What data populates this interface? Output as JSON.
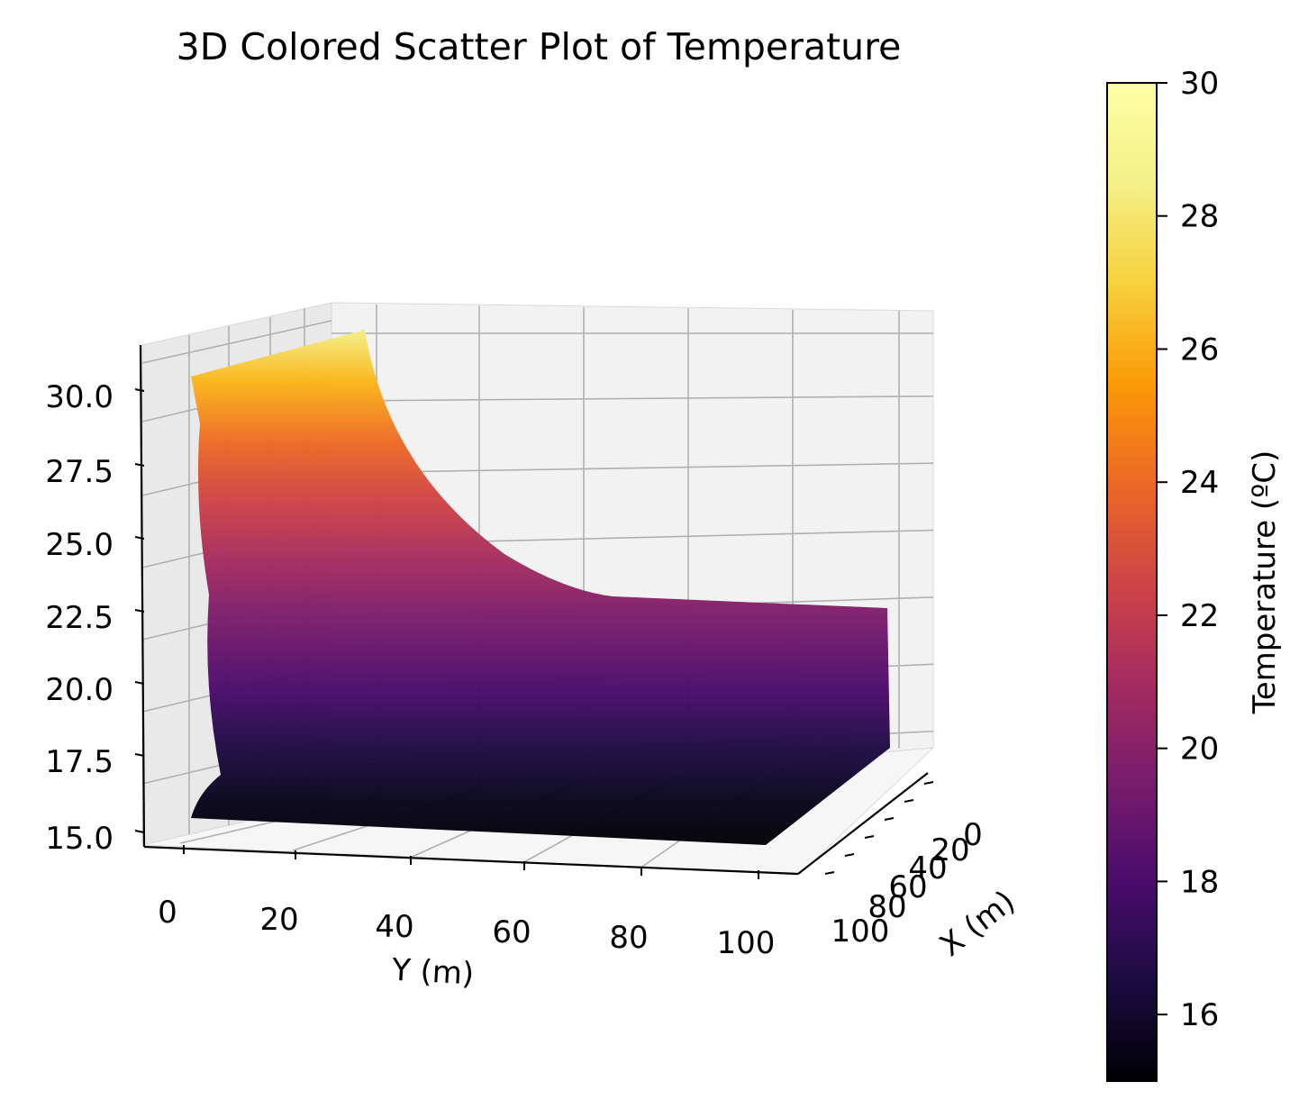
{
  "chart_data": {
    "type": "scatter",
    "projection": "3d",
    "title": "3D Colored Scatter Plot of Temperature",
    "xlabel": "X (m)",
    "ylabel": "Y (m)",
    "zlabel": "",
    "xlim": [
      0,
      100
    ],
    "ylim": [
      0,
      100
    ],
    "zlim": [
      15,
      30
    ],
    "x_ticks": [
      "0",
      "20",
      "40",
      "60",
      "80",
      "100"
    ],
    "y_ticks": [
      "0",
      "20",
      "40",
      "60",
      "80",
      "100"
    ],
    "z_ticks": [
      "15.0",
      "17.5",
      "20.0",
      "22.5",
      "25.0",
      "27.5",
      "30.0"
    ],
    "colormap": "inferno",
    "colorbar": {
      "label": "Temperature (ºC)",
      "range": [
        15,
        30
      ],
      "ticks": [
        "16",
        "18",
        "20",
        "22",
        "24",
        "26",
        "28",
        "30"
      ]
    },
    "grid": true,
    "surface_description_points": [
      {
        "y": 0,
        "z": 30.0
      },
      {
        "y": 10,
        "z": 27.0
      },
      {
        "y": 20,
        "z": 24.0
      },
      {
        "y": 30,
        "z": 22.6
      },
      {
        "y": 40,
        "z": 22.1
      },
      {
        "y": 60,
        "z": 22.0
      },
      {
        "y": 100,
        "z": 22.0
      }
    ]
  }
}
